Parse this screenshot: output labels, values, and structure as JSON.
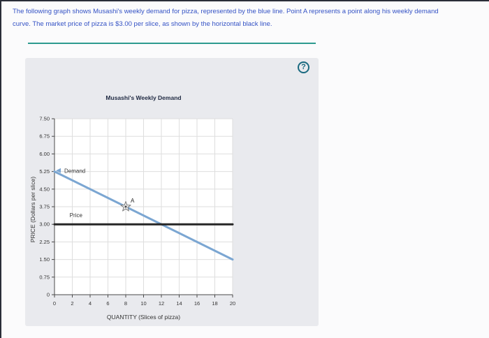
{
  "instructions": {
    "text": "The following graph shows Musashi's weekly demand for pizza, represented by the blue line. Point A represents a point along his weekly demand\ncurve. The market price of pizza is $3.00 per slice, as shown by the horizontal black line."
  },
  "panel": {
    "help_glyph": "?"
  },
  "colors": {
    "divider_teal": "#2d9b8f",
    "instruction_blue": "#3452c5",
    "demand_blue": "#7ba6d2",
    "price_black": "#262626",
    "panel_gray": "#e9eaee"
  },
  "chart_data": {
    "type": "line",
    "title": "Musashi's Weekly Demand",
    "xlabel": "QUANTITY (Slices of pizza)",
    "ylabel": "PRICE (Dollars per slice)",
    "xlim": [
      0,
      20
    ],
    "ylim": [
      0,
      7.5
    ],
    "grid": true,
    "legend": "none",
    "x_ticks": [
      0,
      2,
      4,
      6,
      8,
      10,
      12,
      14,
      16,
      18,
      20
    ],
    "x_tick_labels": [
      "0",
      "2",
      "4",
      "6",
      "8",
      "10",
      "12",
      "14",
      "16",
      "18",
      "20"
    ],
    "y_ticks": [
      0,
      0.75,
      1.5,
      2.25,
      3,
      3.75,
      4.5,
      5.25,
      6,
      6.75,
      7.5
    ],
    "y_tick_labels": [
      "0",
      "0.75",
      "1.50",
      "2.25",
      "3.00",
      "3.75",
      "4.50",
      "5.25",
      "6.00",
      "6.75",
      "7.50"
    ],
    "series": [
      {
        "name": "Demand",
        "color": "#7ba6d2",
        "width": 3,
        "points": [
          [
            0,
            5.25
          ],
          [
            20,
            1.5
          ]
        ],
        "label": {
          "text": "Demand",
          "x": 1.1,
          "y": 5.2,
          "arrow": true
        }
      },
      {
        "name": "Price",
        "color": "#262626",
        "width": 3,
        "points": [
          [
            0,
            3
          ],
          [
            20,
            3
          ]
        ],
        "label": {
          "text": "Price",
          "x": 1.7,
          "y": 3.3,
          "arrow": false
        }
      }
    ],
    "annotations": [
      {
        "label": "A",
        "x": 8,
        "y": 3.75,
        "marker": "star"
      }
    ]
  }
}
